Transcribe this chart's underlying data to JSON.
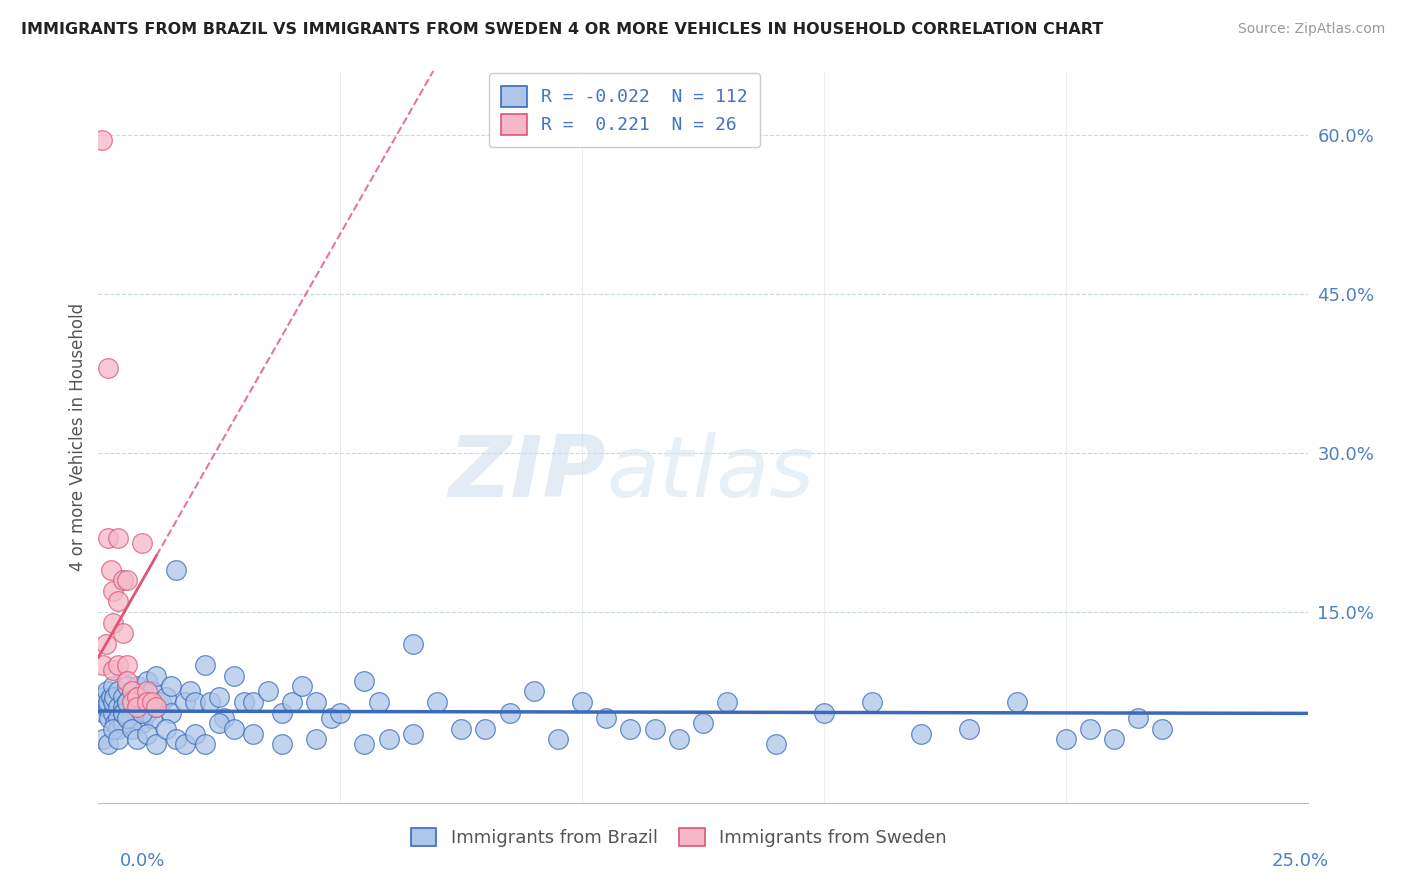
{
  "title": "IMMIGRANTS FROM BRAZIL VS IMMIGRANTS FROM SWEDEN 4 OR MORE VEHICLES IN HOUSEHOLD CORRELATION CHART",
  "source": "Source: ZipAtlas.com",
  "ylabel": "4 or more Vehicles in Household",
  "ytick_vals": [
    0.0,
    0.15,
    0.3,
    0.45,
    0.6
  ],
  "ytick_labels": [
    "",
    "15.0%",
    "30.0%",
    "45.0%",
    "60.0%"
  ],
  "xlim": [
    0.0,
    0.25
  ],
  "ylim": [
    -0.03,
    0.66
  ],
  "watermark_zip": "ZIP",
  "watermark_atlas": "atlas",
  "brazil_R": -0.022,
  "brazil_N": 112,
  "sweden_R": 0.221,
  "sweden_N": 26,
  "brazil_color": "#aec6e8",
  "sweden_color": "#f4b8c8",
  "brazil_line_color": "#3a6bba",
  "sweden_line_color": "#e05575",
  "brazil_x": [
    0.0008,
    0.001,
    0.0012,
    0.0015,
    0.0018,
    0.002,
    0.002,
    0.0022,
    0.0025,
    0.003,
    0.003,
    0.003,
    0.0032,
    0.0035,
    0.004,
    0.004,
    0.004,
    0.004,
    0.005,
    0.005,
    0.005,
    0.005,
    0.006,
    0.006,
    0.006,
    0.007,
    0.007,
    0.007,
    0.008,
    0.008,
    0.009,
    0.009,
    0.01,
    0.01,
    0.011,
    0.011,
    0.012,
    0.012,
    0.013,
    0.014,
    0.015,
    0.015,
    0.016,
    0.018,
    0.019,
    0.02,
    0.022,
    0.023,
    0.025,
    0.026,
    0.028,
    0.03,
    0.032,
    0.035,
    0.038,
    0.04,
    0.042,
    0.045,
    0.048,
    0.05,
    0.055,
    0.058,
    0.06,
    0.065,
    0.07,
    0.075,
    0.08,
    0.085,
    0.09,
    0.095,
    0.1,
    0.105,
    0.11,
    0.115,
    0.12,
    0.125,
    0.13,
    0.14,
    0.15,
    0.16,
    0.17,
    0.18,
    0.19,
    0.2,
    0.205,
    0.21,
    0.215,
    0.22,
    0.001,
    0.002,
    0.003,
    0.004,
    0.005,
    0.006,
    0.006,
    0.007,
    0.008,
    0.009,
    0.01,
    0.012,
    0.014,
    0.016,
    0.018,
    0.02,
    0.022,
    0.025,
    0.028,
    0.032,
    0.038,
    0.045,
    0.055,
    0.065
  ],
  "brazil_y": [
    0.065,
    0.07,
    0.055,
    0.06,
    0.075,
    0.06,
    0.065,
    0.05,
    0.07,
    0.08,
    0.055,
    0.065,
    0.07,
    0.045,
    0.075,
    0.06,
    0.05,
    0.04,
    0.07,
    0.06,
    0.055,
    0.045,
    0.08,
    0.065,
    0.05,
    0.075,
    0.065,
    0.05,
    0.08,
    0.055,
    0.07,
    0.045,
    0.085,
    0.055,
    0.075,
    0.05,
    0.09,
    0.06,
    0.065,
    0.07,
    0.08,
    0.055,
    0.19,
    0.065,
    0.075,
    0.065,
    0.1,
    0.065,
    0.07,
    0.05,
    0.09,
    0.065,
    0.065,
    0.075,
    0.055,
    0.065,
    0.08,
    0.065,
    0.05,
    0.055,
    0.085,
    0.065,
    0.03,
    0.12,
    0.065,
    0.04,
    0.04,
    0.055,
    0.075,
    0.03,
    0.065,
    0.05,
    0.04,
    0.04,
    0.03,
    0.045,
    0.065,
    0.025,
    0.055,
    0.065,
    0.035,
    0.04,
    0.065,
    0.03,
    0.04,
    0.03,
    0.05,
    0.04,
    0.03,
    0.025,
    0.04,
    0.03,
    0.055,
    0.065,
    0.05,
    0.04,
    0.03,
    0.055,
    0.035,
    0.025,
    0.04,
    0.03,
    0.025,
    0.035,
    0.025,
    0.045,
    0.04,
    0.035,
    0.025,
    0.03,
    0.025,
    0.035
  ],
  "sweden_x": [
    0.0008,
    0.001,
    0.0015,
    0.002,
    0.002,
    0.0025,
    0.003,
    0.003,
    0.003,
    0.004,
    0.004,
    0.004,
    0.005,
    0.005,
    0.006,
    0.006,
    0.006,
    0.007,
    0.007,
    0.008,
    0.008,
    0.009,
    0.01,
    0.01,
    0.011,
    0.012
  ],
  "sweden_y": [
    0.595,
    0.1,
    0.12,
    0.38,
    0.22,
    0.19,
    0.17,
    0.14,
    0.095,
    0.22,
    0.16,
    0.1,
    0.18,
    0.13,
    0.18,
    0.1,
    0.085,
    0.075,
    0.065,
    0.07,
    0.06,
    0.215,
    0.075,
    0.065,
    0.065,
    0.06
  ]
}
